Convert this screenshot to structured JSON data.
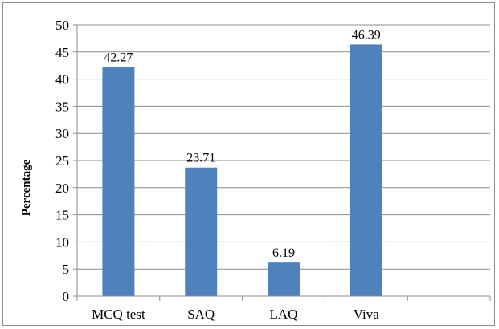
{
  "chart_data": {
    "type": "bar",
    "categories": [
      "MCQ test",
      "SAQ",
      "LAQ",
      "Viva"
    ],
    "values": [
      42.27,
      23.71,
      6.19,
      46.39
    ],
    "data_labels": [
      "42.27",
      "23.71",
      "6.19",
      "46.39"
    ],
    "ylabel": "Percentage",
    "xlabel": "",
    "ylim": [
      0,
      50
    ],
    "y_ticks": [
      "0",
      "5",
      "10",
      "15",
      "20",
      "25",
      "30",
      "35",
      "40",
      "45",
      "50"
    ],
    "grid": true,
    "legend": "none",
    "bar_color": "#4f81bd"
  }
}
